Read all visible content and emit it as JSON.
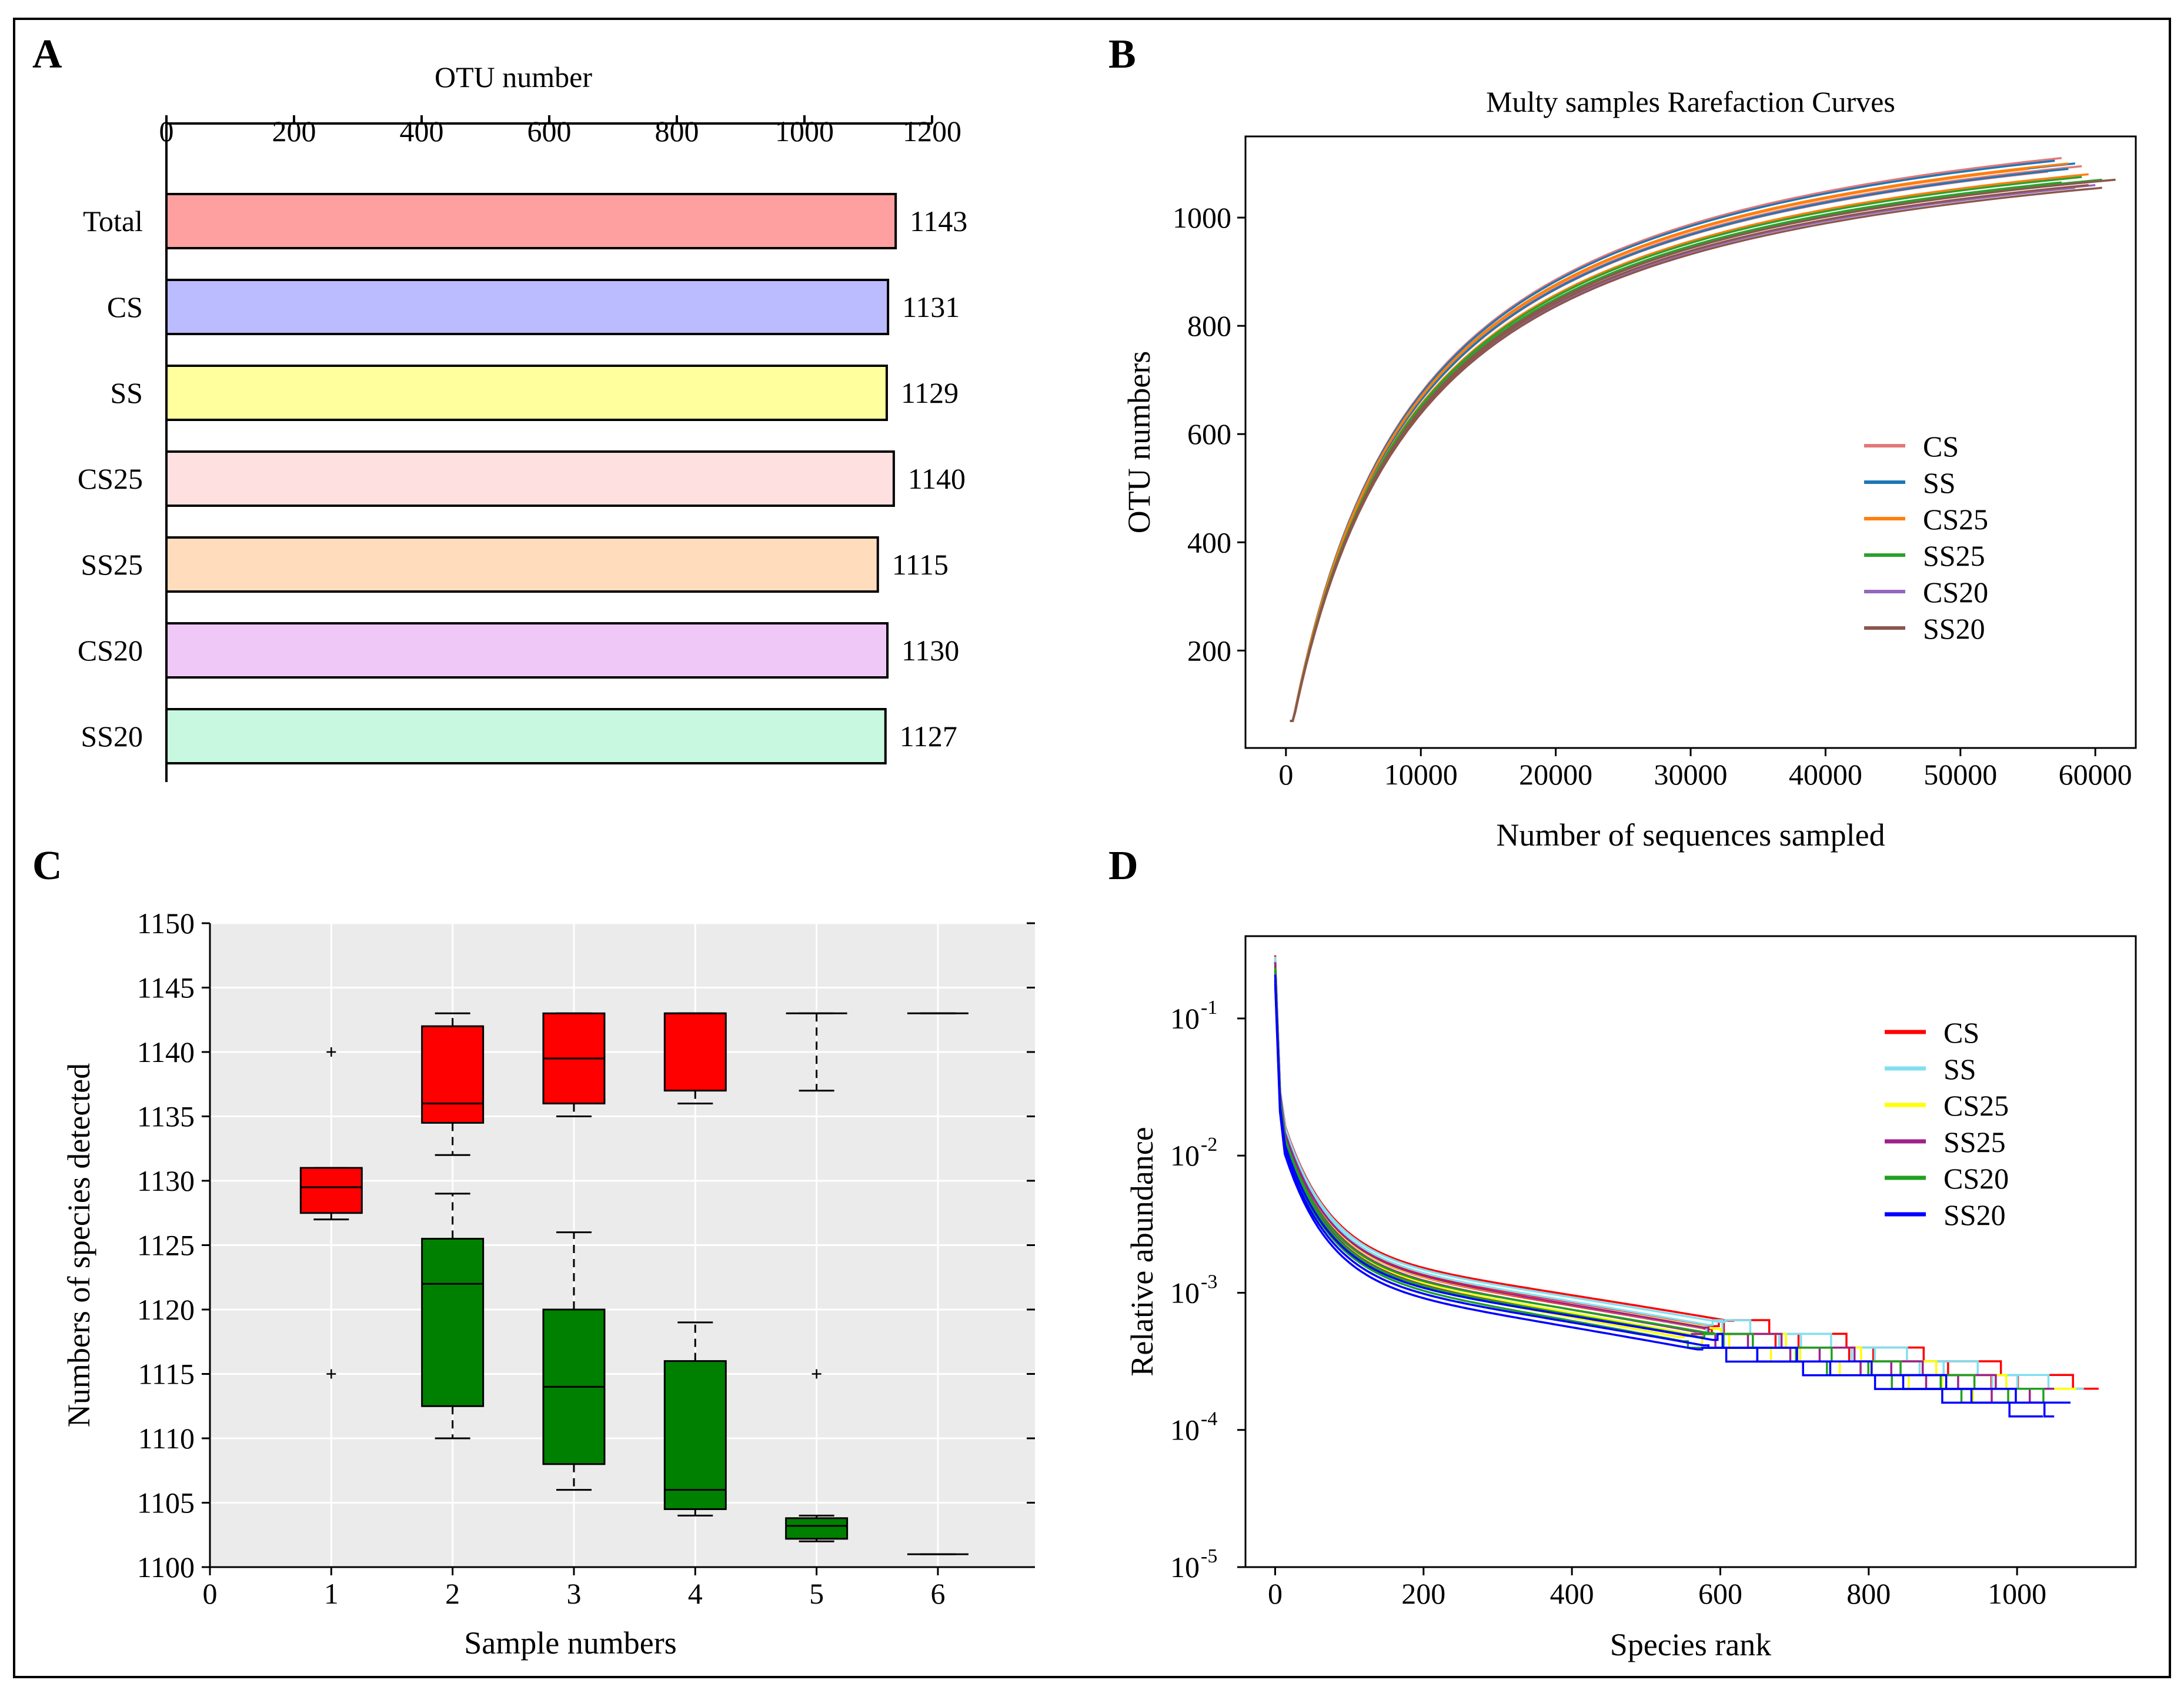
{
  "panel_labels": {
    "a": "A",
    "b": "B",
    "c": "C",
    "d": "D"
  },
  "chart_data": [
    {
      "panel": "A",
      "type": "bar",
      "orientation": "horizontal",
      "title": "OTU number",
      "xlim": [
        0,
        1200
      ],
      "ticks": [
        "0",
        "200",
        "400",
        "600",
        "800",
        "1000",
        "1200"
      ],
      "categories": [
        "Total",
        "CS",
        "SS",
        "CS25",
        "SS25",
        "CS20",
        "SS20"
      ],
      "values": [
        1143,
        1131,
        1129,
        1140,
        1115,
        1130,
        1127
      ],
      "value_labels": [
        "1143",
        "1131",
        "1129",
        "1140",
        "1115",
        "1130",
        "1127"
      ],
      "colors": [
        "#ffa0a0",
        "#bbbbff",
        "#ffff9e",
        "#ffe0e0",
        "#ffdcbc",
        "#f0c8f8",
        "#c8f8e0"
      ]
    },
    {
      "panel": "B",
      "type": "line",
      "title": "Multy samples Rarefaction Curves",
      "xlabel": "Number of sequences sampled",
      "ylabel": "OTU numbers",
      "xlim": [
        -3000,
        63000
      ],
      "ylim": [
        20,
        1150
      ],
      "xticks": [
        "0",
        "10000",
        "20000",
        "30000",
        "40000",
        "50000",
        "60000"
      ],
      "yticks": [
        "200",
        "400",
        "600",
        "800",
        "1000"
      ],
      "legend": [
        "CS",
        "SS",
        "CS25",
        "SS25",
        "CS20",
        "SS20"
      ],
      "legend_colors": [
        "#e37777",
        "#1f77b4",
        "#ff7f0e",
        "#2ca02c",
        "#9467bd",
        "#8c564b"
      ],
      "series": [
        {
          "name": "CS",
          "color": "#e37777",
          "max_x": 57500,
          "max_y": 1110
        },
        {
          "name": "CS",
          "color": "#e37777",
          "max_x": 59000,
          "max_y": 1095
        },
        {
          "name": "CS",
          "color": "#e37777",
          "max_x": 56500,
          "max_y": 1085
        },
        {
          "name": "SS",
          "color": "#1f77b4",
          "max_x": 58500,
          "max_y": 1100
        },
        {
          "name": "SS",
          "color": "#1f77b4",
          "max_x": 57000,
          "max_y": 1105
        },
        {
          "name": "SS",
          "color": "#1f77b4",
          "max_x": 58000,
          "max_y": 1090
        },
        {
          "name": "CS25",
          "color": "#ff7f0e",
          "max_x": 58000,
          "max_y": 1100
        },
        {
          "name": "CS25",
          "color": "#ff7f0e",
          "max_x": 55000,
          "max_y": 1090
        },
        {
          "name": "CS25",
          "color": "#ff7f0e",
          "max_x": 59500,
          "max_y": 1080
        },
        {
          "name": "SS25",
          "color": "#2ca02c",
          "max_x": 59000,
          "max_y": 1075
        },
        {
          "name": "SS25",
          "color": "#2ca02c",
          "max_x": 60500,
          "max_y": 1070
        },
        {
          "name": "SS25",
          "color": "#2ca02c",
          "max_x": 57500,
          "max_y": 1065
        },
        {
          "name": "CS20",
          "color": "#9467bd",
          "max_x": 60000,
          "max_y": 1060
        },
        {
          "name": "CS20",
          "color": "#9467bd",
          "max_x": 61500,
          "max_y": 1070
        },
        {
          "name": "CS20",
          "color": "#9467bd",
          "max_x": 58500,
          "max_y": 1055
        },
        {
          "name": "SS20",
          "color": "#8c564b",
          "max_x": 60500,
          "max_y": 1055
        },
        {
          "name": "SS20",
          "color": "#8c564b",
          "max_x": 61500,
          "max_y": 1070
        },
        {
          "name": "SS20",
          "color": "#8c564b",
          "max_x": 59500,
          "max_y": 1060
        }
      ]
    },
    {
      "panel": "C",
      "type": "boxplot",
      "xlabel": "Sample numbers",
      "ylabel": "Numbers of species detected",
      "xlim": [
        0,
        6.8
      ],
      "ylim": [
        1100,
        1150
      ],
      "xticks": [
        "0",
        "1",
        "2",
        "3",
        "4",
        "5",
        "6"
      ],
      "yticks": [
        "1100",
        "1105",
        "1110",
        "1115",
        "1120",
        "1125",
        "1130",
        "1135",
        "1140",
        "1145",
        "1150"
      ],
      "boxes": [
        {
          "x": 1,
          "color": "#ff0000",
          "whisker_low": 1127,
          "q1": 1127.5,
          "median": 1129.5,
          "q3": 1131,
          "whisker_high": 1131,
          "outliers": [
            1140,
            1115
          ]
        },
        {
          "x": 2,
          "color": "#ff0000",
          "whisker_low": 1132,
          "q1": 1134.5,
          "median": 1136,
          "q3": 1142,
          "whisker_high": 1143,
          "outliers": []
        },
        {
          "x": 3,
          "color": "#ff0000",
          "whisker_low": 1135,
          "q1": 1136,
          "median": 1139.5,
          "q3": 1143,
          "whisker_high": 1143,
          "outliers": []
        },
        {
          "x": 4,
          "color": "#ff0000",
          "whisker_low": 1136,
          "q1": 1137,
          "median": 1143,
          "q3": 1143,
          "whisker_high": 1143,
          "outliers": []
        },
        {
          "x": 5,
          "color": "#ff0000",
          "whisker_low": 1137,
          "q1": 1143,
          "median": 1143,
          "q3": 1143,
          "whisker_high": 1143,
          "outliers": []
        },
        {
          "x": 6,
          "color": "#ff0000",
          "whisker_low": 1143,
          "q1": 1143,
          "median": 1143,
          "q3": 1143,
          "whisker_high": 1143,
          "outliers": []
        },
        {
          "x": 2,
          "color": "#008000",
          "whisker_low": 1110,
          "q1": 1112.5,
          "median": 1122,
          "q3": 1125.5,
          "whisker_high": 1129,
          "outliers": []
        },
        {
          "x": 3,
          "color": "#008000",
          "whisker_low": 1106,
          "q1": 1108,
          "median": 1114,
          "q3": 1120,
          "whisker_high": 1126,
          "outliers": []
        },
        {
          "x": 4,
          "color": "#008000",
          "whisker_low": 1104,
          "q1": 1104.5,
          "median": 1106,
          "q3": 1116,
          "whisker_high": 1119,
          "outliers": []
        },
        {
          "x": 5,
          "color": "#008000",
          "whisker_low": 1102,
          "q1": 1102.2,
          "median": 1103.2,
          "q3": 1103.8,
          "whisker_high": 1104,
          "outliers": [
            1115
          ]
        },
        {
          "x": 6,
          "color": "#008000",
          "whisker_low": 1101,
          "q1": 1101,
          "median": 1101,
          "q3": 1101,
          "whisker_high": 1101,
          "outliers": []
        }
      ]
    },
    {
      "panel": "D",
      "type": "line",
      "scale_y": "log",
      "xlabel": "Species rank",
      "ylabel": "Relative abundance",
      "xlim": [
        -40,
        1160
      ],
      "ylim_log10": [
        -5,
        -0.4
      ],
      "xticks": [
        "0",
        "200",
        "400",
        "600",
        "800",
        "1000"
      ],
      "yticks": [
        {
          "base": "10",
          "exp": "-1"
        },
        {
          "base": "10",
          "exp": "-2"
        },
        {
          "base": "10",
          "exp": "-3"
        },
        {
          "base": "10",
          "exp": "-4"
        },
        {
          "base": "10",
          "exp": "-5"
        }
      ],
      "legend": [
        "CS",
        "SS",
        "CS25",
        "SS25",
        "CS20",
        "SS20"
      ],
      "legend_colors": [
        "#ff0000",
        "#80e0f0",
        "#ffff00",
        "#a0208a",
        "#20a020",
        "#0000ff"
      ],
      "series": [
        {
          "name": "CS",
          "color": "#ff0000",
          "n": 1110,
          "shift": 0.06
        },
        {
          "name": "CS",
          "color": "#ff0000",
          "n": 1075,
          "shift": 0.02
        },
        {
          "name": "CS",
          "color": "#ff0000",
          "n": 1058,
          "shift": 0.0
        },
        {
          "name": "SS",
          "color": "#80e0f0",
          "n": 1090,
          "shift": 0.05
        },
        {
          "name": "SS",
          "color": "#80e0f0",
          "n": 1060,
          "shift": 0.03
        },
        {
          "name": "SS",
          "color": "#80e0f0",
          "n": 1045,
          "shift": 0.01
        },
        {
          "name": "CS25",
          "color": "#ffff00",
          "n": 1080,
          "shift": 0.0
        },
        {
          "name": "CS25",
          "color": "#ffff00",
          "n": 1020,
          "shift": -0.04
        },
        {
          "name": "CS25",
          "color": "#ffff00",
          "n": 990,
          "shift": -0.06
        },
        {
          "name": "SS25",
          "color": "#a0208a",
          "n": 1050,
          "shift": 0.01
        },
        {
          "name": "SS25",
          "color": "#a0208a",
          "n": 1030,
          "shift": -0.02
        },
        {
          "name": "SS25",
          "color": "#a0208a",
          "n": 1010,
          "shift": -0.05
        },
        {
          "name": "CS20",
          "color": "#20a020",
          "n": 1062,
          "shift": -0.03
        },
        {
          "name": "CS20",
          "color": "#20a020",
          "n": 1040,
          "shift": -0.06
        },
        {
          "name": "CS20",
          "color": "#20a020",
          "n": 1000,
          "shift": -0.09
        },
        {
          "name": "SS20",
          "color": "#0000ff",
          "n": 1072,
          "shift": -0.08
        },
        {
          "name": "SS20",
          "color": "#0000ff",
          "n": 1050,
          "shift": -0.12
        },
        {
          "name": "SS20",
          "color": "#0000ff",
          "n": 1035,
          "shift": -0.15
        }
      ]
    }
  ]
}
